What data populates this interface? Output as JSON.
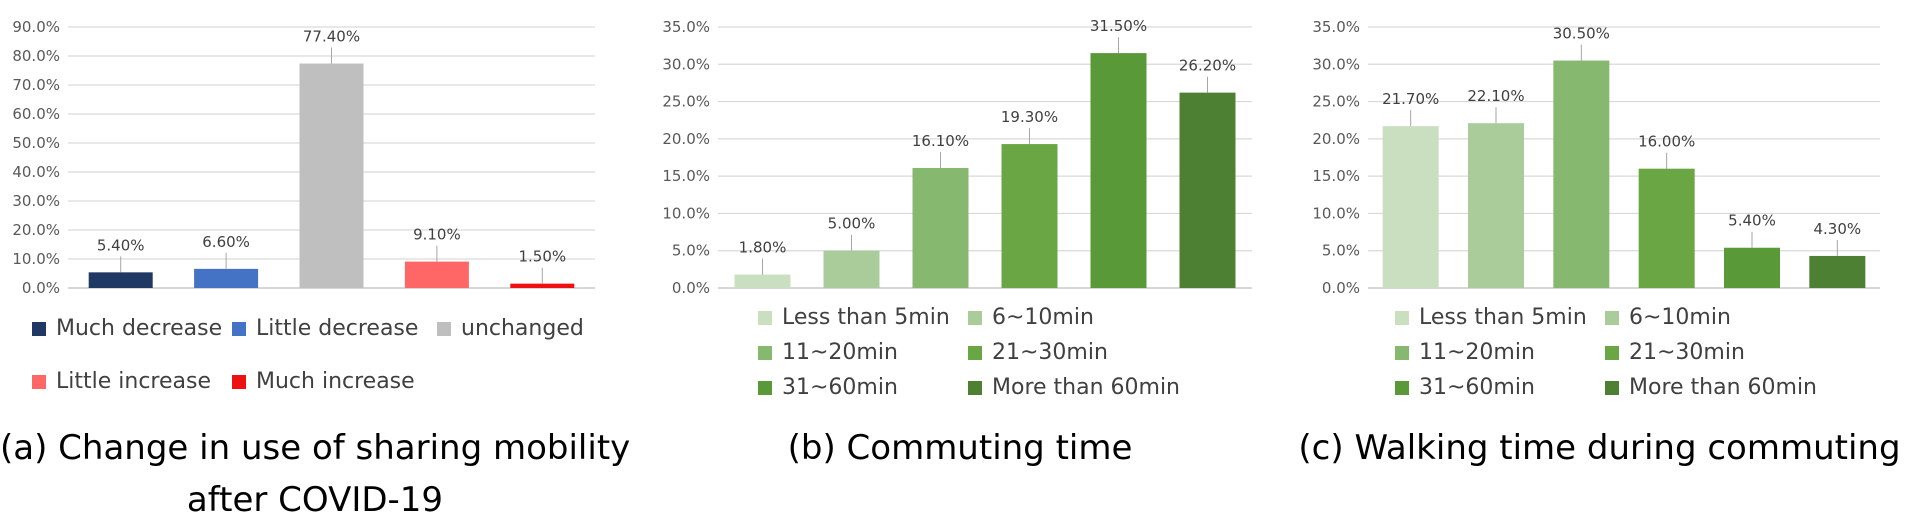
{
  "chart_data": [
    {
      "type": "bar",
      "id": "a",
      "caption_lines": [
        "(a) Change in use of sharing mobility",
        "after COVID-19"
      ],
      "categories": [
        "Much decrease",
        "Little decrease",
        "unchanged",
        "Little increase",
        "Much increase"
      ],
      "values": [
        5.4,
        6.6,
        77.4,
        9.1,
        1.5
      ],
      "value_labels": [
        "5.40%",
        "6.60%",
        "77.40%",
        "9.10%",
        "1.50%"
      ],
      "colors": [
        "#203864",
        "#4472c4",
        "#bfbfbf",
        "#ff6666",
        "#ee1111"
      ],
      "ylim": [
        0,
        90
      ],
      "yticks": [
        "0.0%",
        "10.0%",
        "20.0%",
        "30.0%",
        "40.0%",
        "50.0%",
        "60.0%",
        "70.0%",
        "80.0%",
        "90.0%"
      ],
      "legend": [
        "Much decrease",
        "Little decrease",
        "unchanged",
        "Little increase",
        "Much increase"
      ],
      "grid": true
    },
    {
      "type": "bar",
      "id": "b",
      "caption_lines": [
        "(b) Commuting time"
      ],
      "categories": [
        "Less than 5min",
        "6~10min",
        "11~20min",
        "21~30min",
        "31~60min",
        "More than 60min"
      ],
      "values": [
        1.8,
        5.0,
        16.1,
        19.3,
        31.5,
        26.2
      ],
      "value_labels": [
        "1.80%",
        "5.00%",
        "16.10%",
        "19.30%",
        "31.50%",
        "26.20%"
      ],
      "colors": [
        "#c9dfc0",
        "#a9cc9a",
        "#87b86f",
        "#6aa744",
        "#5a9938",
        "#4e8034"
      ],
      "ylim": [
        0,
        35
      ],
      "yticks": [
        "0.0%",
        "5.0%",
        "10.0%",
        "15.0%",
        "20.0%",
        "25.0%",
        "30.0%",
        "35.0%"
      ],
      "legend": [
        "Less than 5min",
        "6~10min",
        "11~20min",
        "21~30min",
        "31~60min",
        "More than 60min"
      ],
      "grid": true
    },
    {
      "type": "bar",
      "id": "c",
      "caption_lines": [
        "(c) Walking time during commuting"
      ],
      "categories": [
        "Less than 5min",
        "6~10min",
        "11~20min",
        "21~30min",
        "31~60min",
        "More than 60min"
      ],
      "values": [
        21.7,
        22.1,
        30.5,
        16.0,
        5.4,
        4.3
      ],
      "value_labels": [
        "21.70%",
        "22.10%",
        "30.50%",
        "16.00%",
        "5.40%",
        "4.30%"
      ],
      "colors": [
        "#c9dfc0",
        "#a9cc9a",
        "#87b86f",
        "#6aa744",
        "#5a9938",
        "#4e8034"
      ],
      "ylim": [
        0,
        35
      ],
      "yticks": [
        "0.0%",
        "5.0%",
        "10.0%",
        "15.0%",
        "20.0%",
        "25.0%",
        "30.0%",
        "35.0%"
      ],
      "legend": [
        "Less than 5min",
        "6~10min",
        "11~20min",
        "21~30min",
        "31~60min",
        "More than 60min"
      ],
      "grid": true
    }
  ]
}
